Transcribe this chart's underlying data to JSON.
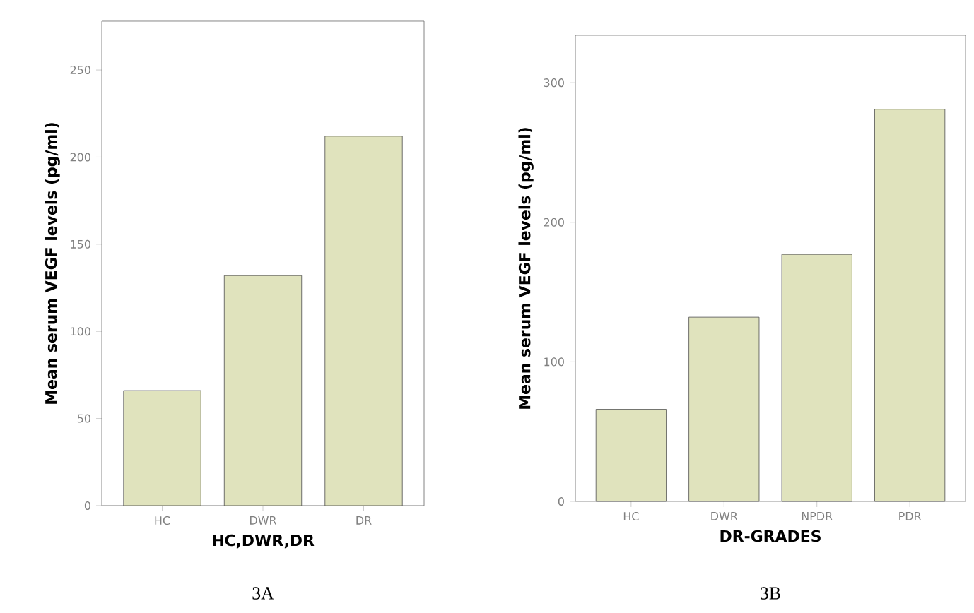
{
  "chart_data": [
    {
      "type": "bar",
      "categories": [
        "HC",
        "DWR",
        "DR"
      ],
      "values": [
        66,
        132,
        212
      ],
      "color": "#e0e3bd",
      "ylim": [
        0,
        278
      ],
      "yticks": [
        0,
        50,
        100,
        150,
        200,
        250
      ],
      "xlabel": "HC,DWR,DR",
      "ylabel": "Mean serum VEGF levels (pg/ml)",
      "annotations": [
        "3A"
      ],
      "grid": false
    },
    {
      "type": "bar",
      "categories": [
        "HC",
        "DWR",
        "NPDR",
        "PDR"
      ],
      "values": [
        66,
        132,
        177,
        281
      ],
      "color": "#e0e3bd",
      "ylim": [
        0,
        334
      ],
      "yticks": [
        0,
        100,
        200,
        300
      ],
      "xlabel": "DR-GRADES",
      "ylabel": "Mean serum VEGF levels (pg/ml)",
      "annotations": [
        "3B"
      ],
      "grid": false
    }
  ]
}
